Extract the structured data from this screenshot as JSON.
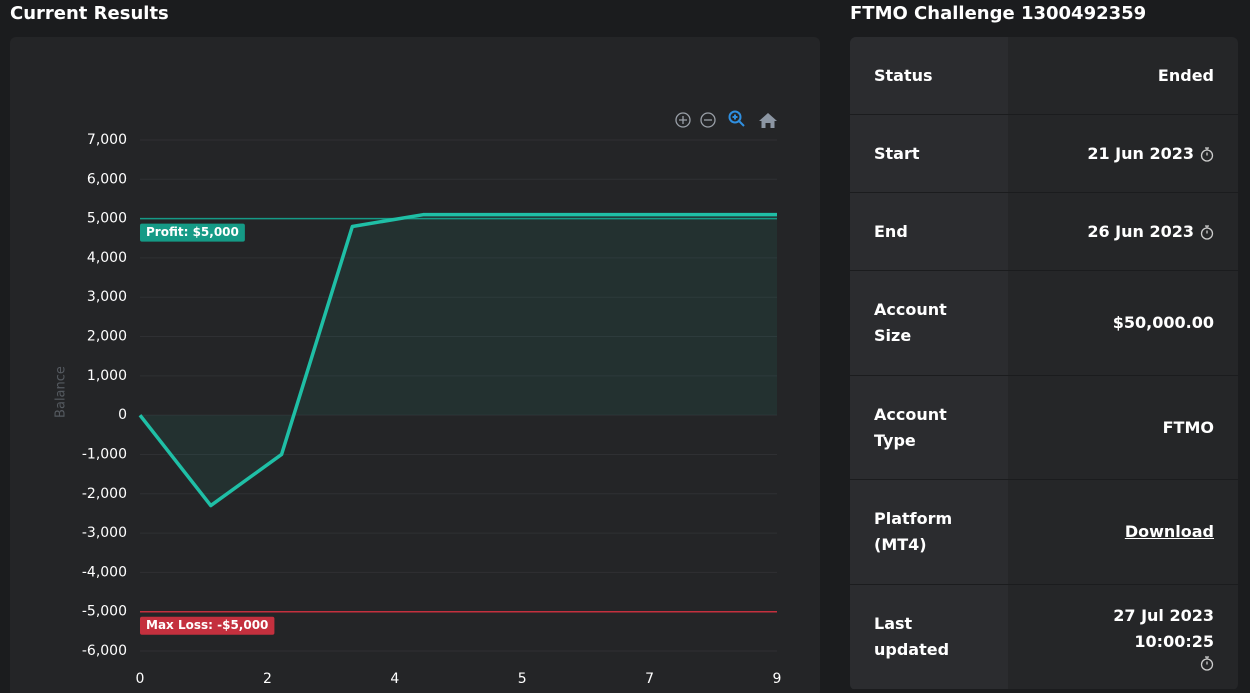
{
  "header": {
    "left_title": "Current Results"
  },
  "chart_data": {
    "type": "line",
    "y_label": "Balance",
    "x": [
      0,
      1,
      2,
      3,
      4,
      5,
      6,
      7,
      8,
      9
    ],
    "series": [
      {
        "name": "Balance",
        "color": "#1fbfa6",
        "values": [
          0,
          -2300,
          -1000,
          4800,
          5100,
          5100,
          5100,
          5100,
          5100,
          5100
        ]
      }
    ],
    "xlim": [
      0,
      9
    ],
    "xticks": [
      0,
      {
        "value": 1.8,
        "label": "2"
      },
      {
        "value": 3.6,
        "label": "4"
      },
      {
        "value": 5.4,
        "label": "5"
      },
      {
        "value": 7.2,
        "label": "7"
      },
      9
    ],
    "ylim": [
      -6000,
      7000
    ],
    "yticks": [
      {
        "value": -6000,
        "label": "-6,000"
      },
      {
        "value": -5000,
        "label": "-5,000"
      },
      {
        "value": -4000,
        "label": "-4,000"
      },
      {
        "value": -3000,
        "label": "-3,000"
      },
      {
        "value": -2000,
        "label": "-2,000"
      },
      {
        "value": -1000,
        "label": "-1,000"
      },
      0,
      {
        "value": 1000,
        "label": "1,000"
      },
      {
        "value": 2000,
        "label": "2,000"
      },
      {
        "value": 3000,
        "label": "3,000"
      },
      {
        "value": 4000,
        "label": "4,000"
      },
      {
        "value": 5000,
        "label": "5,000"
      },
      {
        "value": 6000,
        "label": "6,000"
      },
      {
        "value": 7000,
        "label": "7,000"
      }
    ],
    "grid": true,
    "annotations": [
      {
        "value": 5000,
        "label": "Profit: $5,000",
        "color": "#159a86"
      },
      {
        "value": -5000,
        "label": "Max Loss: -$5,000",
        "color": "#c4303e"
      }
    ]
  },
  "info": {
    "title": "FTMO Challenge 1300492359",
    "rows": [
      {
        "label": "Status",
        "value": "Ended"
      },
      {
        "label": "Start",
        "value": "21 Jun 2023"
      },
      {
        "label": "End",
        "value": "26 Jun 2023"
      },
      {
        "label": "Account Size",
        "value": "$50,000.00"
      },
      {
        "label": "Account Type",
        "value": "FTMO"
      },
      {
        "label": "Platform (MT4)",
        "value": "Download"
      },
      {
        "label": "Last updated",
        "value": "27 Jul 2023 10:00:25"
      }
    ]
  }
}
